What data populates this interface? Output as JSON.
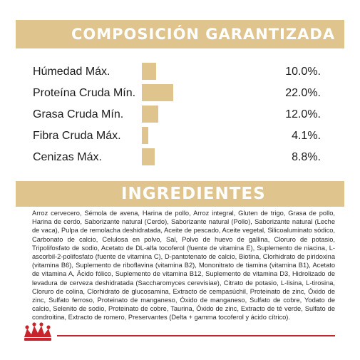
{
  "composition": {
    "title": "COMPOSICIÓN GARANTIZADA",
    "rows": [
      {
        "label": "Húmedad Máx.",
        "value": "10.0%.",
        "level": 10.0
      },
      {
        "label": "Proteína Cruda Mín.",
        "value": "22.0%.",
        "level": 22.0
      },
      {
        "label": "Grasa Cruda Mín.",
        "value": "12.0%.",
        "level": 12.0
      },
      {
        "label": "Fibra Cruda Máx.",
        "value": "4.1%.",
        "level": 4.1
      },
      {
        "label": "Cenizas Máx.",
        "value": "8.8%.",
        "level": 8.8
      }
    ]
  },
  "ingredients": {
    "title": "INGREDIENTES",
    "text": "Arroz cervecero, Sémola de avena, Harina de pollo, Arroz integral, Gluten de trigo, Grasa de pollo, Harina de cerdo, Saborizante natural (Cerdo), Saborizante natural (Pollo), Saborizante natural (Leche de vaca), Pulpa de remolacha deshidratada, Aceite de pescado, Aceite vegetal, Silicoaluminato sódico, Carbonato de calcio, Celulosa en polvo, Sal, Polvo de huevo de gallina, Cloruro de potasio, Tripolifosfato de sodio, Acetato de DL-alfa tocoferol (fuente de vitamina E), Suplemento de niacina, L-ascorbil-2-polifosfato (fuente de vitamina C), D-pantotenato de calcio, Biotina, Clorhidrato de piridoxina (vitamina B6), Suplemento de riboflavina (vitamina B2), Mononitrato de tiamina (vitamina B1), Acetato de vitamina A, Ácido fólico, Suplemento de vitamina B12, Suplemento de vitamina D3, Hidrolizado de levadura de cerveza deshidratada (Saccharomyces cerevisiae), Citrato de potasio, L-lisina, L-tirosina, Cloruro de colina, Clorhidrato de glucosamina, Extracto de cempasúchil, Proteinato de zinc, Óxido de zinc, Sulfato ferroso, Proteinato de manganeso, Óxido de manganeso, Sulfato de cobre, Yodato de calcio, Selenito de sodio, Proteinato de cobre, Taurina, Óxido de zinc, Extracto de té verde, Sulfato de condroitina, Extracto de romero, Preservantes (Delta + gamma tocoferol y ácido cítrico)."
  },
  "colors": {
    "accent_gold": "#dfc48e",
    "brand_red": "#c8242b"
  },
  "icons": {
    "brand": "royal-canin-crown-icon"
  }
}
